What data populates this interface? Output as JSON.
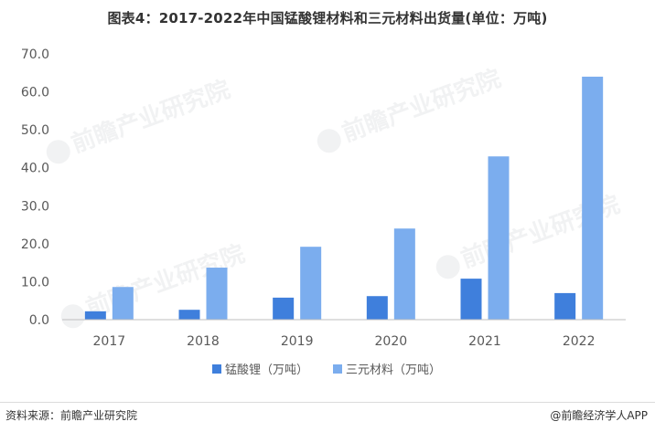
{
  "title": "图表4：2017-2022年中国锰酸锂材料和三元材料出货量(单位：万吨)",
  "source": "资料来源：前瞻产业研究院",
  "brand": "@前瞻经济学人APP",
  "watermark": "前瞻产业研究院",
  "chart_data": {
    "type": "bar",
    "categories": [
      "2017",
      "2018",
      "2019",
      "2020",
      "2021",
      "2022"
    ],
    "series": [
      {
        "name": "锰酸锂（万吨）",
        "color": "#3f7fdc",
        "values": [
          2.2,
          2.6,
          5.8,
          6.2,
          10.8,
          7.0
        ]
      },
      {
        "name": "三元材料（万吨）",
        "color": "#7badee",
        "values": [
          8.6,
          13.7,
          19.2,
          24.0,
          43.0,
          64.0
        ]
      }
    ],
    "yticks": [
      "0.0",
      "10.0",
      "20.0",
      "30.0",
      "40.0",
      "50.0",
      "60.0",
      "70.0"
    ],
    "ylim": [
      0,
      70
    ],
    "legend": "bottom-center",
    "grid": false
  }
}
